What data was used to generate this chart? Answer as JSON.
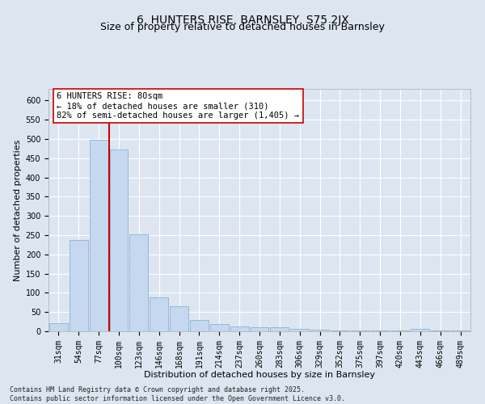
{
  "title": "6, HUNTERS RISE, BARNSLEY, S75 2JX",
  "subtitle": "Size of property relative to detached houses in Barnsley",
  "xlabel": "Distribution of detached houses by size in Barnsley",
  "ylabel": "Number of detached properties",
  "categories": [
    "31sqm",
    "54sqm",
    "77sqm",
    "100sqm",
    "123sqm",
    "146sqm",
    "168sqm",
    "191sqm",
    "214sqm",
    "237sqm",
    "260sqm",
    "283sqm",
    "306sqm",
    "329sqm",
    "352sqm",
    "375sqm",
    "397sqm",
    "420sqm",
    "443sqm",
    "466sqm",
    "489sqm"
  ],
  "values": [
    22,
    238,
    497,
    472,
    251,
    88,
    65,
    29,
    19,
    13,
    10,
    10,
    7,
    4,
    3,
    2,
    2,
    2,
    6,
    2,
    2
  ],
  "bar_color": "#c5d8f0",
  "bar_edge_color": "#7aaad0",
  "background_color": "#dde6f0",
  "grid_color": "#ffffff",
  "vline_color": "#cc0000",
  "vline_x_index": 2,
  "annotation_text": "6 HUNTERS RISE: 80sqm\n← 18% of detached houses are smaller (310)\n82% of semi-detached houses are larger (1,405) →",
  "annotation_box_color": "#ffffff",
  "annotation_box_edge_color": "#cc0000",
  "footer_text": "Contains HM Land Registry data © Crown copyright and database right 2025.\nContains public sector information licensed under the Open Government Licence v3.0.",
  "ylim": [
    0,
    630
  ],
  "yticks": [
    0,
    50,
    100,
    150,
    200,
    250,
    300,
    350,
    400,
    450,
    500,
    550,
    600
  ],
  "title_fontsize": 10,
  "subtitle_fontsize": 9,
  "axis_label_fontsize": 8,
  "tick_fontsize": 7,
  "annotation_fontsize": 7.5,
  "footer_fontsize": 6
}
